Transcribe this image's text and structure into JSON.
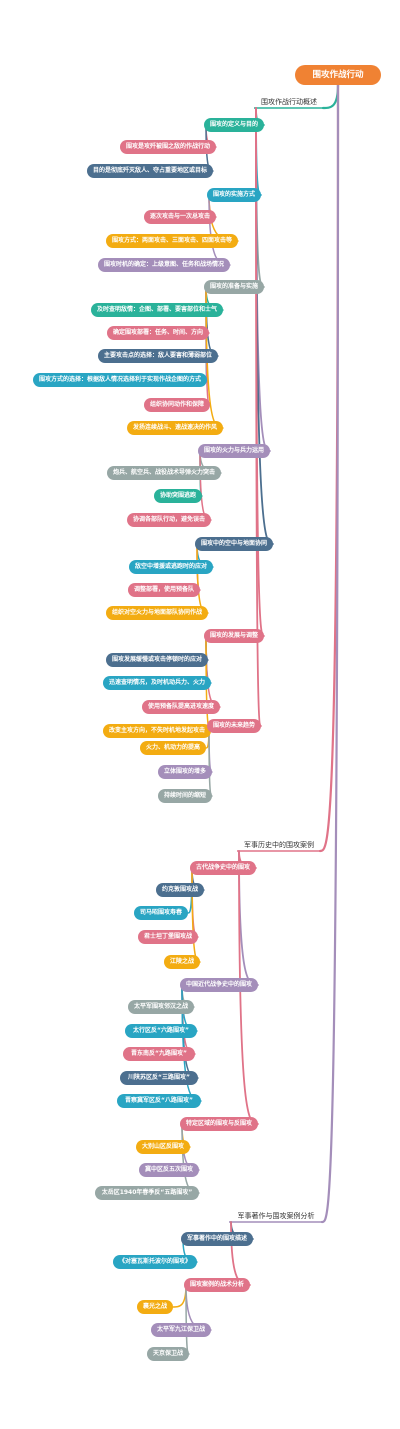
{
  "root": "围攻作战行动",
  "branches": [
    {
      "label": "围攻作战行动概述",
      "color": "#2ab29a",
      "groups": [
        {
          "label": "围攻的定义与目的",
          "color": "#2ab29a",
          "items": [
            {
              "label": "围攻是攻歼被围之敌的作战行动",
              "color": "#e07388"
            },
            {
              "label": "目的是彻底歼灭敌人、夺占重要地区或目标",
              "color": "#4c6f8f"
            }
          ]
        },
        {
          "label": "围攻的实施方式",
          "color": "#29a5c3",
          "items": [
            {
              "label": "逐次攻击与一次总攻击",
              "color": "#e07388"
            },
            {
              "label": "围攻方式：两面攻击、三面攻击、四面攻击等",
              "color": "#f3ac12"
            },
            {
              "label": "围攻时机的确定：上级意图、任务和战场情况",
              "color": "#a48eba"
            }
          ]
        },
        {
          "label": "围攻的准备与实施",
          "color": "#97a7a5",
          "items": [
            {
              "label": "及时查明敌情：企图、部署、要害部位和士气",
              "color": "#2ab29a"
            },
            {
              "label": "确定围攻部署：任务、时间、方向",
              "color": "#e07388"
            },
            {
              "label": "主要攻击点的选择：敌人要害和薄弱部位",
              "color": "#4c6f8f"
            },
            {
              "label": "围攻方式的选择：根据敌人情况选择利于实现作战企图的方式",
              "color": "#29a5c3"
            },
            {
              "label": "组织协同动作和保障",
              "color": "#e07388"
            },
            {
              "label": "发扬连续战斗、速战速决的作风",
              "color": "#f3ac12"
            }
          ]
        },
        {
          "label": "围攻的火力与兵力运用",
          "color": "#a48eba",
          "items": [
            {
              "label": "炮兵、航空兵、战役战术导弹火力突击",
              "color": "#97a7a5"
            },
            {
              "label": "协助突围逃跑",
              "color": "#2ab29a"
            },
            {
              "label": "协调各部队行动，避免误击",
              "color": "#e07388"
            }
          ]
        },
        {
          "label": "围攻中的空中与地面协同",
          "color": "#4c6f8f",
          "items": [
            {
              "label": "敌空中增援或逃跑时的应对",
              "color": "#29a5c3"
            },
            {
              "label": "调整部署，使用预备队",
              "color": "#e07388"
            },
            {
              "label": "组织对空火力与地面部队协同作战",
              "color": "#f3ac12"
            }
          ]
        },
        {
          "label": "围攻的发展与调整",
          "color": "#e07388",
          "items": [
            {
              "label": "围攻发展缓慢或攻击停顿时的应对",
              "color": "#4c6f8f"
            },
            {
              "label": "迅速查明情况，及时机动兵力、火力",
              "color": "#29a5c3"
            },
            {
              "label": "使用预备队提高进攻速度",
              "color": "#e07388"
            },
            {
              "label": "改变主攻方向，不失时机地发起攻击",
              "color": "#f3ac12"
            }
          ]
        },
        {
          "label": "围攻的未来趋势",
          "color": "#e07388",
          "items": [
            {
              "label": "火力、机动力的提高",
              "color": "#f3ac12"
            },
            {
              "label": "立体围攻的增多",
              "color": "#a48eba"
            },
            {
              "label": "持续时间的缩短",
              "color": "#97a7a5"
            }
          ]
        }
      ]
    },
    {
      "label": "军事历史中的围攻案例",
      "color": "#e07388",
      "groups": [
        {
          "label": "古代战争史中的围攻",
          "color": "#e07388",
          "items": [
            {
              "label": "约克敦围攻战",
              "color": "#4c6f8f"
            },
            {
              "label": "司马昭围攻寿春",
              "color": "#29a5c3"
            },
            {
              "label": "君士坦丁堡围攻战",
              "color": "#e07388"
            },
            {
              "label": "江陵之战",
              "color": "#f3ac12"
            }
          ]
        },
        {
          "label": "中国近代战争史中的围攻",
          "color": "#a48eba",
          "items": [
            {
              "label": "太平军围攻邻汉之战",
              "color": "#97a7a5"
            },
            {
              "label": "太行区反“六路围攻”",
              "color": "#29a5c3"
            },
            {
              "label": "晋东南反“九路围攻”",
              "color": "#e07388"
            },
            {
              "label": "川陕苏区反“三路围攻”",
              "color": "#4c6f8f"
            },
            {
              "label": "晋察冀军区反“八路围攻”",
              "color": "#29a5c3"
            }
          ]
        },
        {
          "label": "特定区域的围攻与反围攻",
          "color": "#e07388",
          "items": [
            {
              "label": "大别山区反围攻",
              "color": "#f3ac12"
            },
            {
              "label": "冀中区反五次围攻",
              "color": "#a48eba"
            },
            {
              "label": "太岳区1940年春季反“五路围攻”",
              "color": "#97a7a5"
            }
          ]
        }
      ]
    },
    {
      "label": "军事著作与围攻案例分析",
      "color": "#a48eba",
      "groups": [
        {
          "label": "军事著作中的围攻描述",
          "color": "#4c6f8f",
          "items": [
            {
              "label": "《对塞瓦斯托波尔的围攻》",
              "color": "#29a5c3"
            }
          ]
        },
        {
          "label": "围攻案例的战术分析",
          "color": "#e07388",
          "items": [
            {
              "label": "襄光之战",
              "color": "#f3ac12"
            },
            {
              "label": "太平军九江保卫战",
              "color": "#a48eba"
            },
            {
              "label": "天京保卫战",
              "color": "#97a7a5"
            }
          ]
        }
      ]
    }
  ]
}
